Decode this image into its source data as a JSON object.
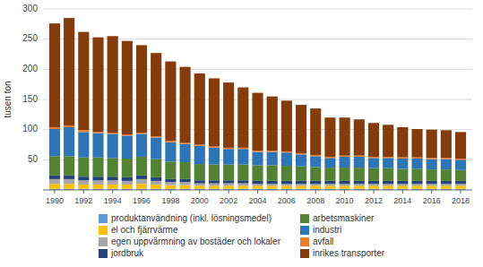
{
  "chart_data": {
    "type": "bar",
    "stacked": true,
    "y_label": "tusen ton",
    "x": [
      1990,
      1991,
      1992,
      1993,
      1994,
      1995,
      1996,
      1997,
      1998,
      1999,
      2000,
      2001,
      2002,
      2003,
      2004,
      2005,
      2006,
      2007,
      2008,
      2009,
      2010,
      2011,
      2012,
      2013,
      2014,
      2015,
      2016,
      2017,
      2018
    ],
    "xlim": [
      1989.2,
      2018.8
    ],
    "xticks": [
      1990,
      1992,
      1994,
      1996,
      1998,
      2000,
      2002,
      2004,
      2006,
      2008,
      2010,
      2012,
      2014,
      2016,
      2018
    ],
    "ylim": [
      0,
      300
    ],
    "yticks": [
      50,
      100,
      150,
      200,
      250,
      300
    ],
    "grid": true,
    "legend": "bottom",
    "series": [
      {
        "name": "produktanvändning (inkl. lösningsmedel)",
        "color": "#5b9bd5",
        "values": [
          2,
          2,
          2,
          2,
          2,
          2,
          2,
          2,
          2,
          2,
          2,
          2,
          2,
          2,
          2,
          2,
          2,
          2,
          2,
          2,
          2,
          2,
          2,
          2,
          2,
          2,
          2,
          2,
          2
        ]
      },
      {
        "name": "el och fjärrvärme",
        "color": "#ffc000",
        "values": [
          8,
          8,
          7,
          7,
          7,
          7,
          8,
          7,
          6,
          6,
          5,
          5,
          5,
          5,
          5,
          5,
          5,
          5,
          5,
          5,
          5,
          5,
          5,
          5,
          5,
          5,
          5,
          5,
          5
        ]
      },
      {
        "name": "egen uppvärmning av bostäder och lokaler",
        "color": "#a6a6a6",
        "values": [
          8,
          8,
          7,
          7,
          7,
          6,
          8,
          6,
          5,
          5,
          4,
          4,
          4,
          4,
          3,
          3,
          3,
          3,
          3,
          3,
          3,
          3,
          3,
          3,
          3,
          3,
          3,
          3,
          3
        ]
      },
      {
        "name": "jordbruk",
        "color": "#264478",
        "values": [
          6,
          6,
          6,
          6,
          6,
          6,
          6,
          6,
          5,
          5,
          5,
          5,
          5,
          5,
          5,
          5,
          5,
          5,
          5,
          5,
          5,
          5,
          5,
          5,
          5,
          5,
          5,
          5,
          5
        ]
      },
      {
        "name": "arbetsmaskiner",
        "color": "#548235",
        "values": [
          32,
          32,
          32,
          32,
          31,
          31,
          31,
          30,
          29,
          28,
          27,
          26,
          26,
          26,
          26,
          26,
          25,
          24,
          23,
          22,
          22,
          22,
          21,
          21,
          20,
          20,
          19,
          19,
          18
        ]
      },
      {
        "name": "industri",
        "color": "#2e75b6",
        "values": [
          45,
          48,
          42,
          40,
          40,
          38,
          38,
          36,
          32,
          30,
          30,
          28,
          26,
          26,
          22,
          22,
          22,
          20,
          18,
          16,
          18,
          18,
          17,
          17,
          17,
          17,
          17,
          17,
          17
        ]
      },
      {
        "name": "avfall",
        "color": "#ed7d31",
        "values": [
          3,
          3,
          3,
          2,
          2,
          2,
          2,
          2,
          2,
          2,
          2,
          2,
          2,
          2,
          2,
          2,
          2,
          2,
          2,
          2,
          2,
          2,
          2,
          2,
          2,
          2,
          2,
          2,
          2
        ]
      },
      {
        "name": "inrikes transporter",
        "color": "#843c0c",
        "values": [
          172,
          178,
          163,
          157,
          160,
          155,
          145,
          138,
          132,
          126,
          118,
          113,
          108,
          100,
          96,
          90,
          84,
          80,
          77,
          65,
          63,
          60,
          56,
          53,
          50,
          47,
          47,
          46,
          44
        ]
      }
    ]
  }
}
